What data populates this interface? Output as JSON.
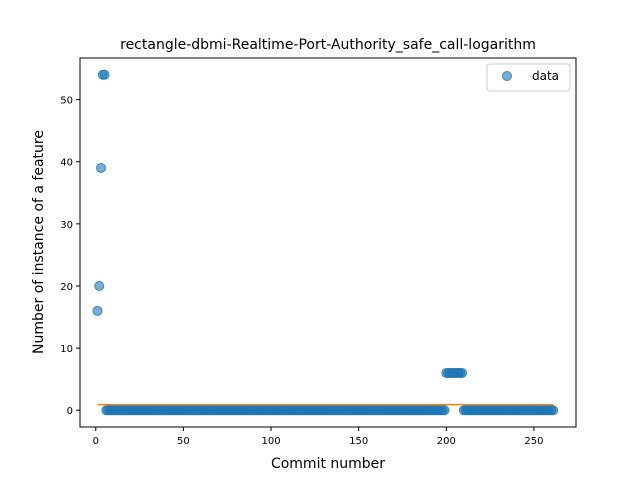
{
  "chart_data": {
    "type": "scatter",
    "title": "rectangle-dbmi-Realtime-Port-Authority_safe_call-logarithm",
    "xlabel": "Commit number",
    "ylabel": "Number of instance of a feature",
    "xlim": [
      -9,
      274
    ],
    "ylim": [
      -2.7,
      56.7
    ],
    "xticks": [
      0,
      50,
      100,
      150,
      200,
      250
    ],
    "yticks": [
      0,
      10,
      20,
      30,
      40,
      50
    ],
    "grid": false,
    "legend_position": "top-right",
    "series": [
      {
        "name": "data",
        "kind": "scatter",
        "color": "#1f77b4",
        "segments": [
          {
            "x": [
              1,
              2,
              3,
              4,
              5
            ],
            "y": [
              16,
              20,
              39,
              54,
              54
            ]
          },
          {
            "x_start": 6,
            "x_end": 199,
            "y": 0
          },
          {
            "x_start": 200,
            "x_end": 209,
            "y": 6
          },
          {
            "x_start": 210,
            "x_end": 261,
            "y": 0
          }
        ]
      },
      {
        "name": "",
        "kind": "line",
        "color": "#ff7f0e",
        "x": [
          1,
          261
        ],
        "y": [
          0.9,
          0.9
        ]
      }
    ]
  }
}
